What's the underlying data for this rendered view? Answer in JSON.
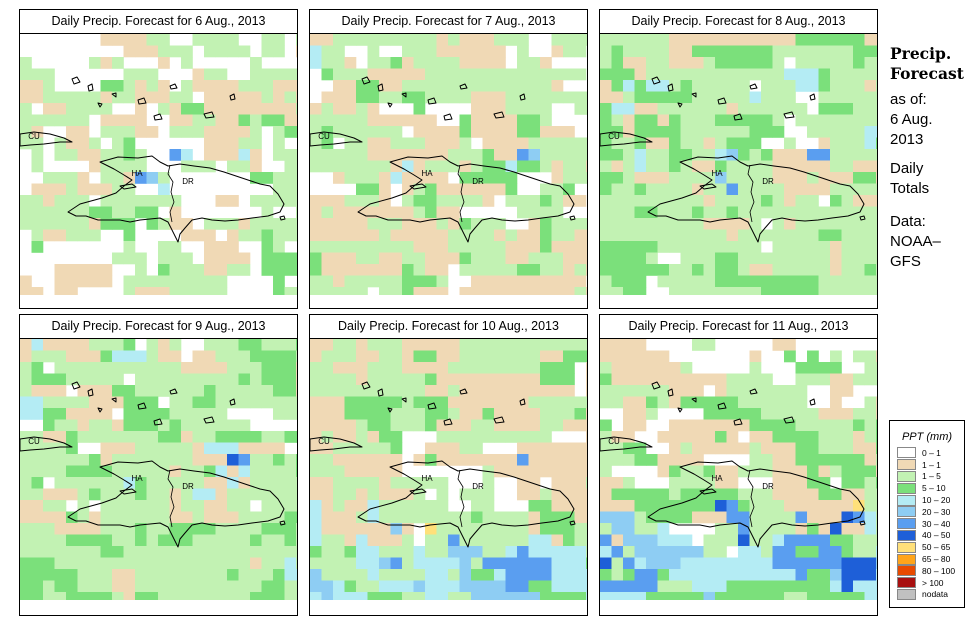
{
  "panels": [
    {
      "title": "Daily Precip. Forecast for  6 Aug., 2013"
    },
    {
      "title": "Daily Precip. Forecast for  7 Aug., 2013"
    },
    {
      "title": "Daily Precip. Forecast for  8 Aug., 2013"
    },
    {
      "title": "Daily Precip. Forecast for  9 Aug., 2013"
    },
    {
      "title": "Daily Precip. Forecast for  10 Aug., 2013"
    },
    {
      "title": "Daily Precip. Forecast for  11 Aug., 2013"
    }
  ],
  "map_labels": {
    "cuba": "CU",
    "haiti": "HA",
    "dominican_republic": "DR"
  },
  "sidebar": {
    "title_line1": "Precip.",
    "title_line2": "Forecast",
    "as_of": "as of:",
    "date_line1": "6 Aug.",
    "date_line2": "2013",
    "totals_line1": "Daily",
    "totals_line2": "Totals",
    "data_line1": "Data:",
    "data_line2": "NOAA–",
    "data_line3": "GFS"
  },
  "legend": {
    "title": "PPT (mm)",
    "items": [
      {
        "label": "0 – 1",
        "color": "#ffffff"
      },
      {
        "label": "1 – 1",
        "color": "#f0d9b5"
      },
      {
        "label": "1 – 5",
        "color": "#c2f2b3"
      },
      {
        "label": "5 – 10",
        "color": "#7be07b"
      },
      {
        "label": "10 – 20",
        "color": "#b4ecf4"
      },
      {
        "label": "20 – 30",
        "color": "#8ecdf3"
      },
      {
        "label": "30 – 40",
        "color": "#5a9ef0"
      },
      {
        "label": "40 – 50",
        "color": "#1e5fd8"
      },
      {
        "label": "50 – 65",
        "color": "#ffe07a"
      },
      {
        "label": "65 – 80",
        "color": "#ffa41a"
      },
      {
        "label": "80 – 100",
        "color": "#e84a00"
      },
      {
        "label": "> 100",
        "color": "#a81010"
      },
      {
        "label": "nodata",
        "color": "#c0c0c0"
      }
    ]
  }
}
